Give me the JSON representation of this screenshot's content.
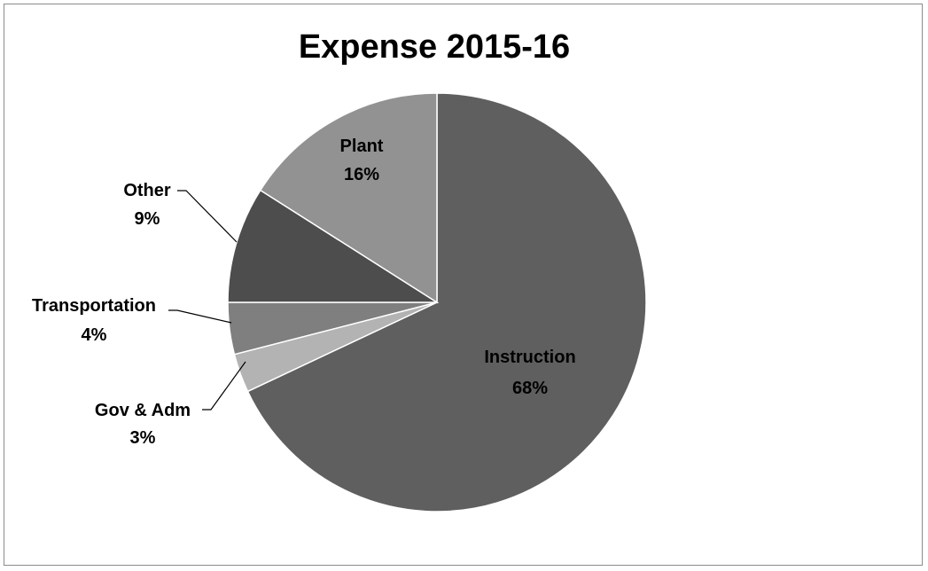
{
  "chart_data": {
    "type": "pie",
    "title": "Expense 2015-16",
    "slices": [
      {
        "label": "Instruction",
        "value": 68,
        "pct_label": "68%",
        "color": "#5f5f5f"
      },
      {
        "label": "Gov & Adm",
        "value": 3,
        "pct_label": "3%",
        "color": "#b3b3b3"
      },
      {
        "label": "Transportation",
        "value": 4,
        "pct_label": "4%",
        "color": "#7f7f7f"
      },
      {
        "label": "Other",
        "value": 9,
        "pct_label": "9%",
        "color": "#4d4d4d"
      },
      {
        "label": "Plant",
        "value": 16,
        "pct_label": "16%",
        "color": "#929292"
      }
    ],
    "start_direction": "12 o'clock",
    "order": "clockwise",
    "border_color": "#ffffff"
  }
}
